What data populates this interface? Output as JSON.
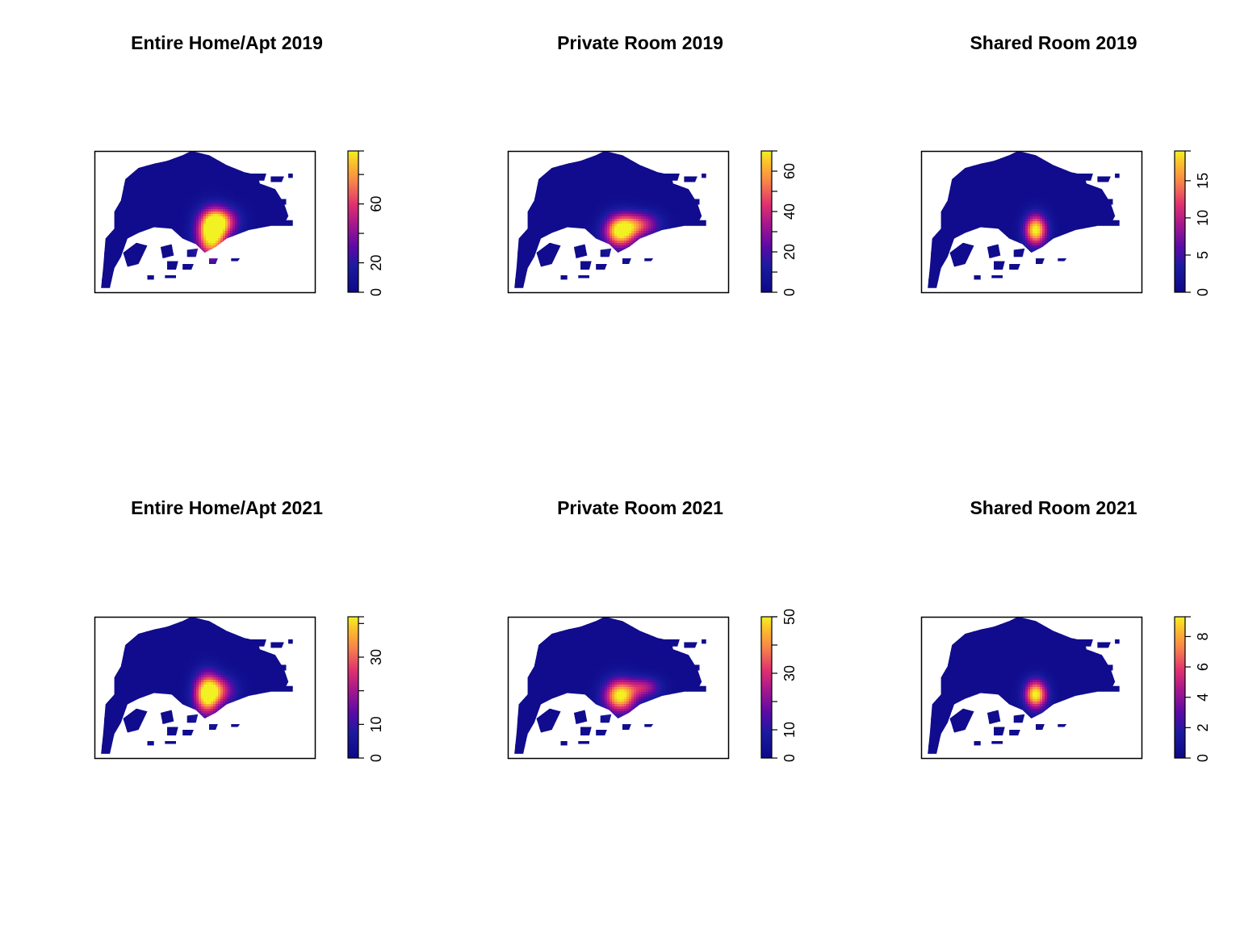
{
  "chart_data": [
    {
      "type": "heatmap",
      "title": "Entire Home/Apt 2019",
      "xlabel": "",
      "ylabel": "",
      "legend": {
        "position": "right",
        "min": 0,
        "max": 96,
        "ticks": [
          0,
          20,
          60
        ],
        "minor_ticks": [
          40,
          80
        ]
      },
      "hotspots": [
        {
          "x": 0.53,
          "y": 0.6,
          "sx": 0.045,
          "sy": 0.11,
          "weight": 1.0
        },
        {
          "x": 0.57,
          "y": 0.5,
          "sx": 0.055,
          "sy": 0.07,
          "weight": 0.75
        }
      ]
    },
    {
      "type": "heatmap",
      "title": "Private Room 2019",
      "xlabel": "",
      "ylabel": "",
      "legend": {
        "position": "right",
        "min": 0,
        "max": 70,
        "ticks": [
          0,
          20,
          40,
          60
        ],
        "minor_ticks": [
          10,
          30,
          50
        ]
      },
      "hotspots": [
        {
          "x": 0.51,
          "y": 0.57,
          "sx": 0.05,
          "sy": 0.08,
          "weight": 1.0
        },
        {
          "x": 0.6,
          "y": 0.52,
          "sx": 0.06,
          "sy": 0.06,
          "weight": 0.55
        }
      ]
    },
    {
      "type": "heatmap",
      "title": "Shared Room 2019",
      "xlabel": "",
      "ylabel": "",
      "legend": {
        "position": "right",
        "min": 0,
        "max": 19,
        "ticks": [
          0,
          5,
          10,
          15
        ],
        "minor_ticks": []
      },
      "hotspots": [
        {
          "x": 0.52,
          "y": 0.56,
          "sx": 0.035,
          "sy": 0.075,
          "weight": 1.0
        }
      ]
    },
    {
      "type": "heatmap",
      "title": "Entire Home/Apt 2021",
      "xlabel": "",
      "ylabel": "",
      "legend": {
        "position": "right",
        "min": 0,
        "max": 42,
        "ticks": [
          0,
          10,
          30
        ],
        "minor_ticks": [
          20,
          40
        ]
      },
      "hotspots": [
        {
          "x": 0.51,
          "y": 0.55,
          "sx": 0.04,
          "sy": 0.1,
          "weight": 1.0
        },
        {
          "x": 0.57,
          "y": 0.52,
          "sx": 0.05,
          "sy": 0.07,
          "weight": 0.5
        }
      ]
    },
    {
      "type": "heatmap",
      "title": "Private Room 2021",
      "xlabel": "",
      "ylabel": "",
      "legend": {
        "position": "right",
        "min": 0,
        "max": 50,
        "ticks": [
          0,
          10,
          30,
          50
        ],
        "minor_ticks": [
          20,
          40
        ]
      },
      "hotspots": [
        {
          "x": 0.51,
          "y": 0.56,
          "sx": 0.05,
          "sy": 0.08,
          "weight": 1.0
        },
        {
          "x": 0.62,
          "y": 0.5,
          "sx": 0.05,
          "sy": 0.05,
          "weight": 0.45
        }
      ]
    },
    {
      "type": "heatmap",
      "title": "Shared Room 2021",
      "xlabel": "",
      "ylabel": "",
      "legend": {
        "position": "right",
        "min": 0,
        "max": 9.3,
        "ticks": [
          0,
          2,
          4,
          6,
          8
        ],
        "minor_ticks": []
      },
      "hotspots": [
        {
          "x": 0.52,
          "y": 0.55,
          "sx": 0.035,
          "sy": 0.07,
          "weight": 1.0
        }
      ]
    }
  ],
  "colors": {
    "low": "#0d0887",
    "mid": "#e8306c",
    "high": "#fde725",
    "frame": "#000000",
    "background": "#ffffff"
  }
}
